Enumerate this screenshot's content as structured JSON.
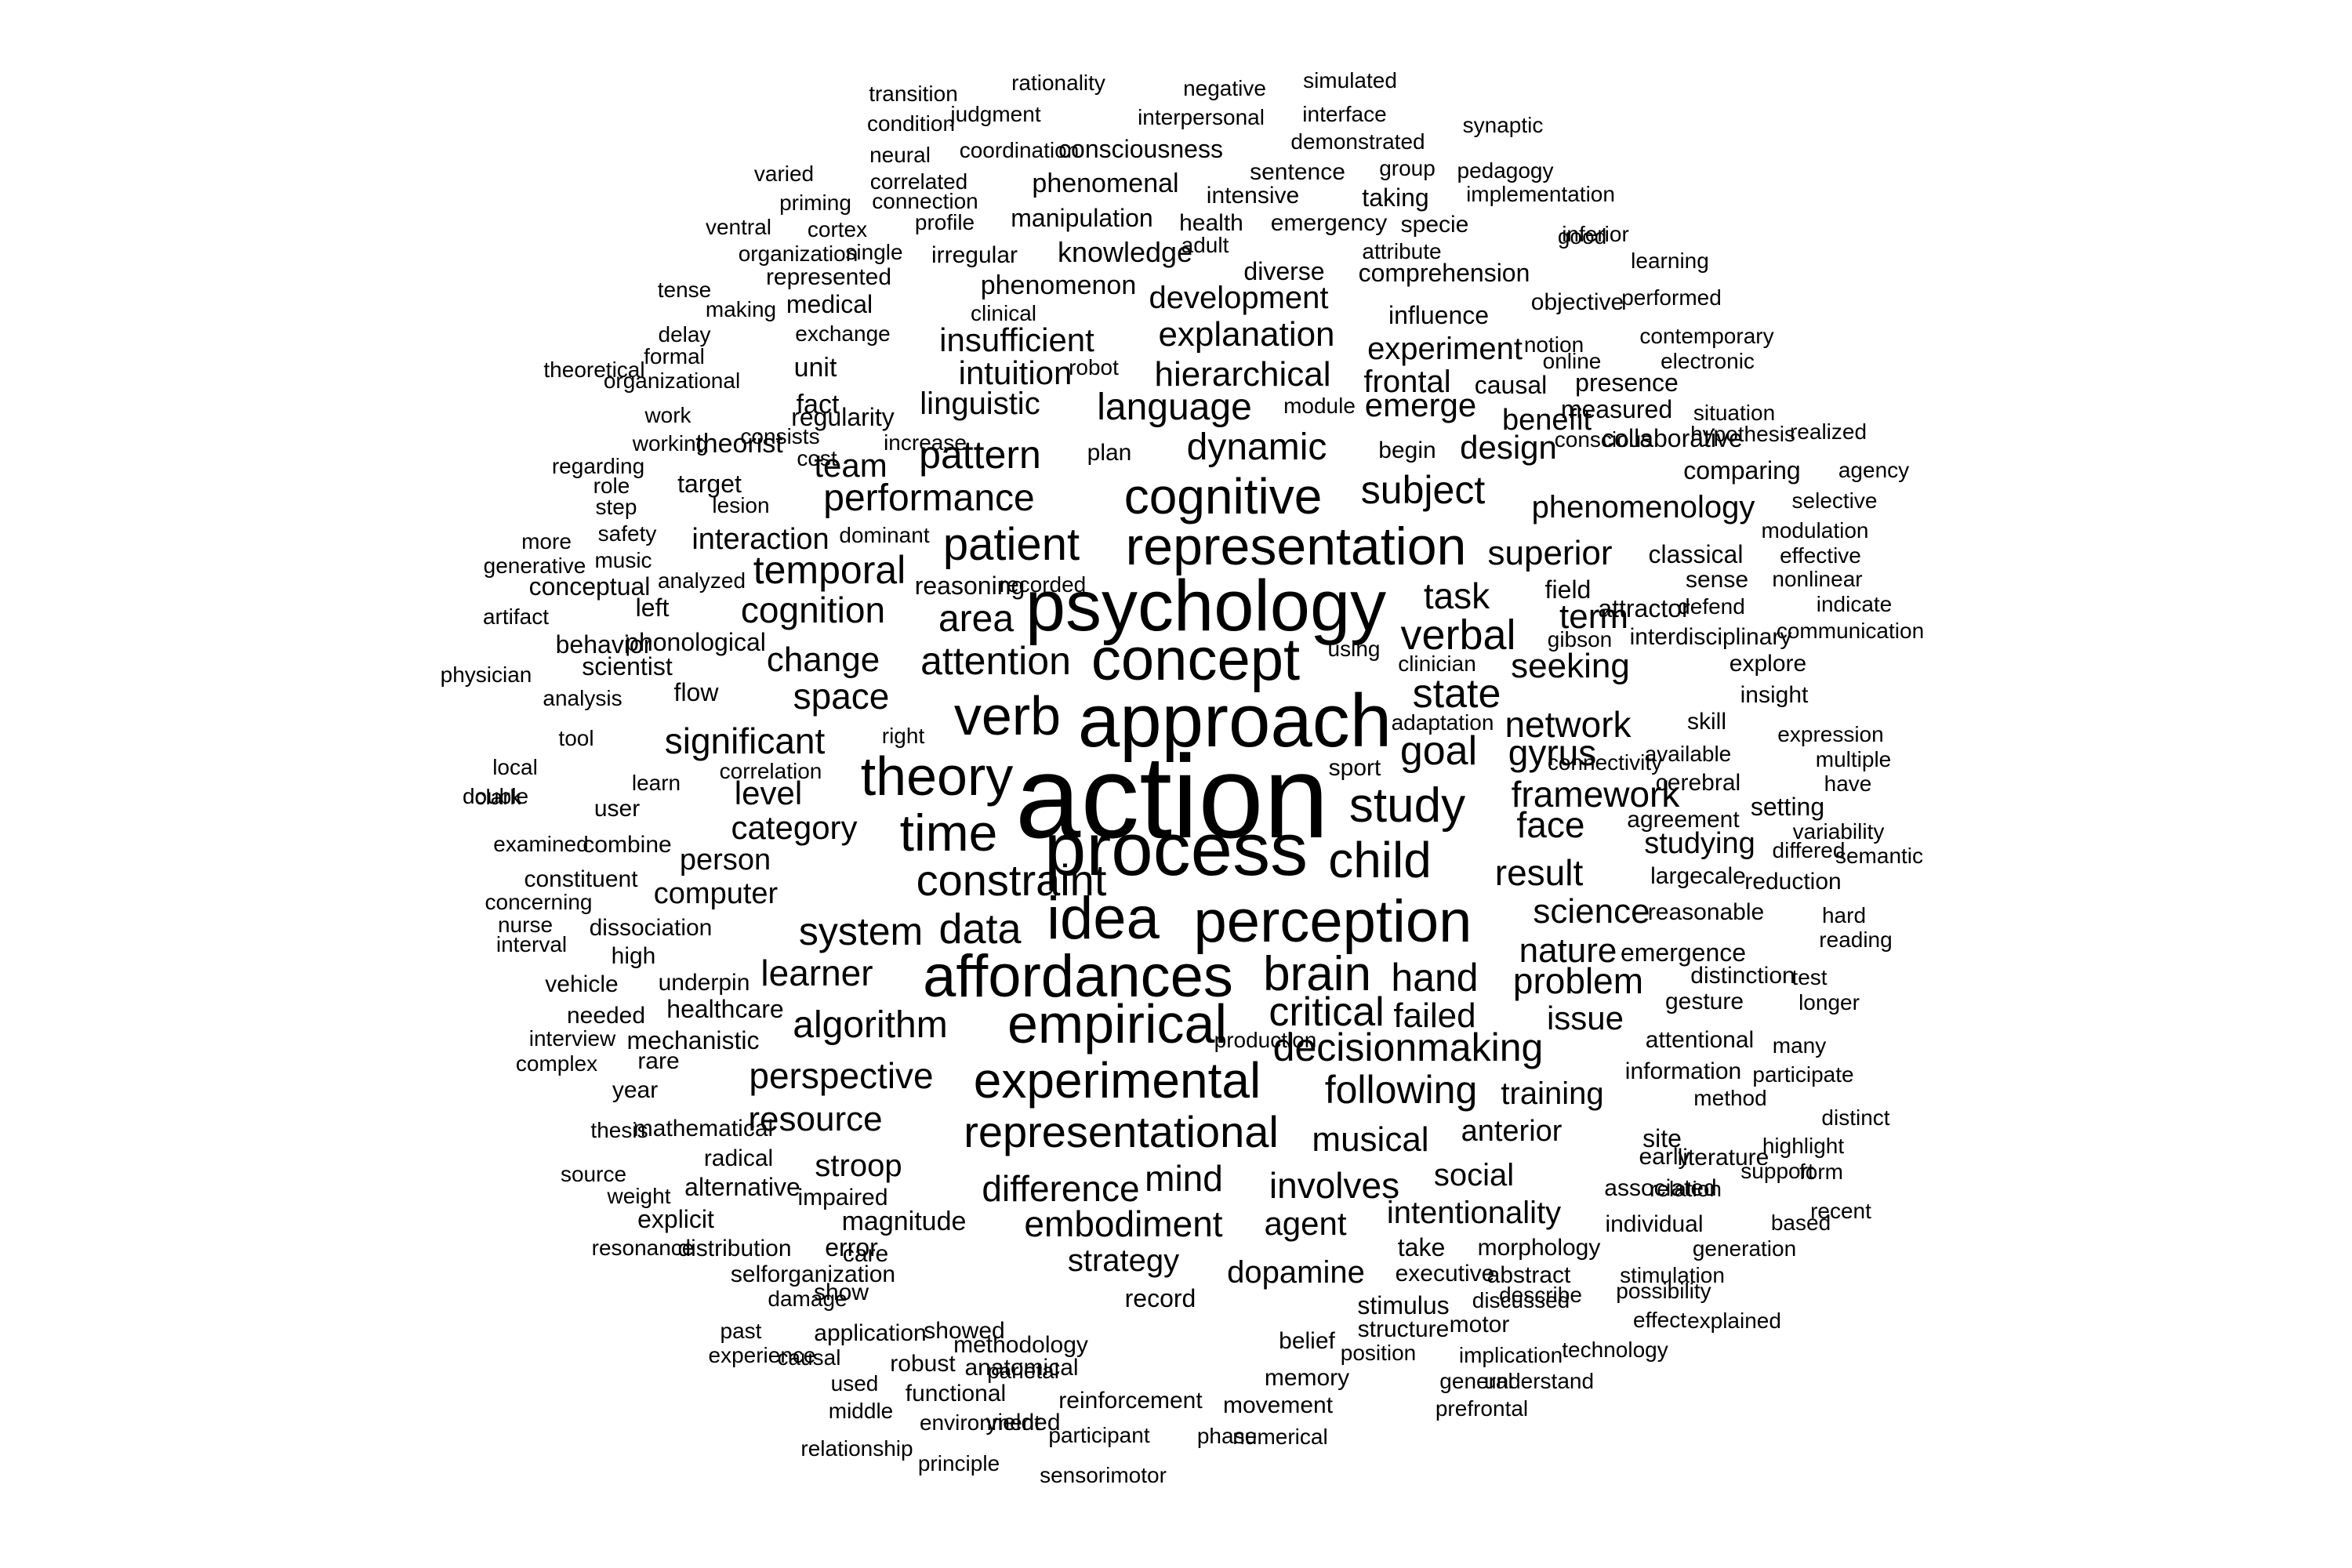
{
  "cloud": {
    "text_color": "#000000",
    "background": "#ffffff",
    "words": [
      {
        "text": "action"
      },
      {
        "text": "approach"
      },
      {
        "text": "process"
      },
      {
        "text": "psychology"
      },
      {
        "text": "concept"
      },
      {
        "text": "idea"
      },
      {
        "text": "perception"
      },
      {
        "text": "affordances"
      },
      {
        "text": "representation"
      },
      {
        "text": "verb"
      },
      {
        "text": "theory"
      },
      {
        "text": "time"
      },
      {
        "text": "empirical"
      },
      {
        "text": "experimental"
      },
      {
        "text": "cognitive"
      },
      {
        "text": "child"
      },
      {
        "text": "study"
      },
      {
        "text": "brain"
      },
      {
        "text": "representational"
      },
      {
        "text": "patient"
      },
      {
        "text": "constraint"
      },
      {
        "text": "verbal"
      },
      {
        "text": "attention"
      },
      {
        "text": "state"
      },
      {
        "text": "goal"
      },
      {
        "text": "critical"
      },
      {
        "text": "decisionmaking"
      },
      {
        "text": "data"
      },
      {
        "text": "system"
      },
      {
        "text": "hand"
      },
      {
        "text": "following"
      },
      {
        "text": "embodiment"
      },
      {
        "text": "difference"
      },
      {
        "text": "involves"
      },
      {
        "text": "significant"
      },
      {
        "text": "space"
      },
      {
        "text": "change"
      },
      {
        "text": "area"
      },
      {
        "text": "task"
      },
      {
        "text": "performance"
      },
      {
        "text": "subject"
      },
      {
        "text": "dynamic"
      },
      {
        "text": "language"
      },
      {
        "text": "pattern"
      },
      {
        "text": "temporal"
      },
      {
        "text": "cognition"
      },
      {
        "text": "network"
      },
      {
        "text": "gyrus"
      },
      {
        "text": "framework"
      },
      {
        "text": "face"
      },
      {
        "text": "result"
      },
      {
        "text": "science"
      },
      {
        "text": "nature"
      },
      {
        "text": "problem"
      },
      {
        "text": "failed"
      },
      {
        "text": "issue"
      },
      {
        "text": "learner"
      },
      {
        "text": "algorithm"
      },
      {
        "text": "perspective"
      },
      {
        "text": "resource"
      },
      {
        "text": "mind"
      },
      {
        "text": "musical"
      },
      {
        "text": "agent"
      },
      {
        "text": "strategy"
      },
      {
        "text": "dopamine"
      },
      {
        "text": "intentionality"
      },
      {
        "text": "social"
      },
      {
        "text": "anterior"
      },
      {
        "text": "training"
      },
      {
        "text": "seeking"
      },
      {
        "text": "term"
      },
      {
        "text": "superior"
      },
      {
        "text": "phenomenology"
      },
      {
        "text": "design"
      },
      {
        "text": "emerge"
      },
      {
        "text": "frontal"
      },
      {
        "text": "experiment"
      },
      {
        "text": "hierarchical"
      },
      {
        "text": "explanation"
      },
      {
        "text": "development"
      },
      {
        "text": "insufficient"
      },
      {
        "text": "intuition"
      },
      {
        "text": "linguistic"
      },
      {
        "text": "team"
      },
      {
        "text": "interaction"
      },
      {
        "text": "category"
      },
      {
        "text": "level"
      },
      {
        "text": "person"
      },
      {
        "text": "computer"
      },
      {
        "text": "studying"
      },
      {
        "text": "stroop"
      },
      {
        "text": "knowledge"
      },
      {
        "text": "phenomenon"
      },
      {
        "text": "phenomenal"
      },
      {
        "text": "manipulation"
      },
      {
        "text": "consciousness"
      },
      {
        "text": "coordination"
      },
      {
        "text": "transition"
      },
      {
        "text": "rationality"
      },
      {
        "text": "negative"
      },
      {
        "text": "simulated"
      },
      {
        "text": "condition"
      },
      {
        "text": "judgment"
      },
      {
        "text": "interpersonal"
      },
      {
        "text": "interface"
      },
      {
        "text": "synaptic"
      },
      {
        "text": "neural"
      },
      {
        "text": "demonstrated"
      },
      {
        "text": "varied"
      },
      {
        "text": "correlated"
      },
      {
        "text": "sentence"
      },
      {
        "text": "group"
      },
      {
        "text": "pedagogy"
      },
      {
        "text": "priming"
      },
      {
        "text": "connection"
      },
      {
        "text": "intensive"
      },
      {
        "text": "taking"
      },
      {
        "text": "implementation"
      },
      {
        "text": "ventral"
      },
      {
        "text": "cortex"
      },
      {
        "text": "profile"
      },
      {
        "text": "health"
      },
      {
        "text": "emergency"
      },
      {
        "text": "specie"
      },
      {
        "text": "inferior"
      },
      {
        "text": "organization"
      },
      {
        "text": "single"
      },
      {
        "text": "irregular"
      },
      {
        "text": "adult"
      },
      {
        "text": "attribute"
      },
      {
        "text": "learning"
      },
      {
        "text": "represented"
      },
      {
        "text": "diverse"
      },
      {
        "text": "comprehension"
      },
      {
        "text": "good"
      },
      {
        "text": "tense"
      },
      {
        "text": "making"
      },
      {
        "text": "medical"
      },
      {
        "text": "clinical"
      },
      {
        "text": "influence"
      },
      {
        "text": "objective"
      },
      {
        "text": "performed"
      },
      {
        "text": "delay"
      },
      {
        "text": "exchange"
      },
      {
        "text": "contemporary"
      },
      {
        "text": "notion"
      },
      {
        "text": "online"
      },
      {
        "text": "formal"
      },
      {
        "text": "organizational"
      },
      {
        "text": "theoretical"
      },
      {
        "text": "unit"
      },
      {
        "text": "robot"
      },
      {
        "text": "electronic"
      },
      {
        "text": "causal"
      },
      {
        "text": "presence"
      },
      {
        "text": "fact"
      },
      {
        "text": "module"
      },
      {
        "text": "measured"
      },
      {
        "text": "situation"
      },
      {
        "text": "work"
      },
      {
        "text": "regularity"
      },
      {
        "text": "benefit"
      },
      {
        "text": "hypothesis"
      },
      {
        "text": "working"
      },
      {
        "text": "theorist"
      },
      {
        "text": "consists"
      },
      {
        "text": "cost"
      },
      {
        "text": "plan"
      },
      {
        "text": "begin"
      },
      {
        "text": "collaborative"
      },
      {
        "text": "realized"
      },
      {
        "text": "regarding"
      },
      {
        "text": "increase"
      },
      {
        "text": "conscious"
      },
      {
        "text": "comparing"
      },
      {
        "text": "agency"
      },
      {
        "text": "role"
      },
      {
        "text": "target"
      },
      {
        "text": "step"
      },
      {
        "text": "lesion"
      },
      {
        "text": "selective"
      },
      {
        "text": "safety"
      },
      {
        "text": "dominant"
      },
      {
        "text": "modulation"
      },
      {
        "text": "more"
      },
      {
        "text": "music"
      },
      {
        "text": "classical"
      },
      {
        "text": "effective"
      },
      {
        "text": "generative"
      },
      {
        "text": "reasoning"
      },
      {
        "text": "field"
      },
      {
        "text": "sense"
      },
      {
        "text": "nonlinear"
      },
      {
        "text": "conceptual"
      },
      {
        "text": "analyzed"
      },
      {
        "text": "indicate"
      },
      {
        "text": "recorded"
      },
      {
        "text": "artifact"
      },
      {
        "text": "left"
      },
      {
        "text": "attractor"
      },
      {
        "text": "defend"
      },
      {
        "text": "communication"
      },
      {
        "text": "behavior"
      },
      {
        "text": "phonological"
      },
      {
        "text": "using"
      },
      {
        "text": "gibson"
      },
      {
        "text": "interdisciplinary"
      },
      {
        "text": "scientist"
      },
      {
        "text": "clinician"
      },
      {
        "text": "explore"
      },
      {
        "text": "physician"
      },
      {
        "text": "flow"
      },
      {
        "text": "insight"
      },
      {
        "text": "analysis"
      },
      {
        "text": "adaptation"
      },
      {
        "text": "skill"
      },
      {
        "text": "tool"
      },
      {
        "text": "right"
      },
      {
        "text": "expression"
      },
      {
        "text": "available"
      },
      {
        "text": "local"
      },
      {
        "text": "correlation"
      },
      {
        "text": "sport"
      },
      {
        "text": "connectivity"
      },
      {
        "text": "multiple"
      },
      {
        "text": "double"
      },
      {
        "text": "learn"
      },
      {
        "text": "cerebral"
      },
      {
        "text": "have"
      },
      {
        "text": "clark"
      },
      {
        "text": "user"
      },
      {
        "text": "setting"
      },
      {
        "text": "agreement"
      },
      {
        "text": "variability"
      },
      {
        "text": "examined"
      },
      {
        "text": "combine"
      },
      {
        "text": "differed"
      },
      {
        "text": "semantic"
      },
      {
        "text": "constituent"
      },
      {
        "text": "largecale"
      },
      {
        "text": "reduction"
      },
      {
        "text": "concerning"
      },
      {
        "text": "dissociation"
      },
      {
        "text": "reasonable"
      },
      {
        "text": "hard"
      },
      {
        "text": "nurse"
      },
      {
        "text": "interval"
      },
      {
        "text": "reading"
      },
      {
        "text": "high"
      },
      {
        "text": "emergence"
      },
      {
        "text": "vehicle"
      },
      {
        "text": "underpin"
      },
      {
        "text": "distinction"
      },
      {
        "text": "test"
      },
      {
        "text": "healthcare"
      },
      {
        "text": "gesture"
      },
      {
        "text": "longer"
      },
      {
        "text": "needed"
      },
      {
        "text": "interview"
      },
      {
        "text": "mechanistic"
      },
      {
        "text": "production"
      },
      {
        "text": "attentional"
      },
      {
        "text": "many"
      },
      {
        "text": "complex"
      },
      {
        "text": "rare"
      },
      {
        "text": "information"
      },
      {
        "text": "participate"
      },
      {
        "text": "year"
      },
      {
        "text": "method"
      },
      {
        "text": "distinct"
      },
      {
        "text": "thesis"
      },
      {
        "text": "mathematical"
      },
      {
        "text": "site"
      },
      {
        "text": "highlight"
      },
      {
        "text": "radical"
      },
      {
        "text": "early"
      },
      {
        "text": "literature"
      },
      {
        "text": "form"
      },
      {
        "text": "source"
      },
      {
        "text": "support"
      },
      {
        "text": "alternative"
      },
      {
        "text": "associated"
      },
      {
        "text": "relation"
      },
      {
        "text": "weight"
      },
      {
        "text": "impaired"
      },
      {
        "text": "recent"
      },
      {
        "text": "explicit"
      },
      {
        "text": "magnitude"
      },
      {
        "text": "individual"
      },
      {
        "text": "based"
      },
      {
        "text": "resonance"
      },
      {
        "text": "distribution"
      },
      {
        "text": "error"
      },
      {
        "text": "take"
      },
      {
        "text": "morphology"
      },
      {
        "text": "generation"
      },
      {
        "text": "care"
      },
      {
        "text": "selforganization"
      },
      {
        "text": "executive"
      },
      {
        "text": "abstract"
      },
      {
        "text": "stimulation"
      },
      {
        "text": "describe"
      },
      {
        "text": "show"
      },
      {
        "text": "discussed"
      },
      {
        "text": "possibility"
      },
      {
        "text": "damage"
      },
      {
        "text": "record"
      },
      {
        "text": "stimulus"
      },
      {
        "text": "motor"
      },
      {
        "text": "effect"
      },
      {
        "text": "explained"
      },
      {
        "text": "past"
      },
      {
        "text": "application"
      },
      {
        "text": "showed"
      },
      {
        "text": "structure"
      },
      {
        "text": "experience"
      },
      {
        "text": "causal"
      },
      {
        "text": "methodology"
      },
      {
        "text": "belief"
      },
      {
        "text": "position"
      },
      {
        "text": "implication"
      },
      {
        "text": "technology"
      },
      {
        "text": "robust"
      },
      {
        "text": "anatomical"
      },
      {
        "text": "parietal"
      },
      {
        "text": "memory"
      },
      {
        "text": "general"
      },
      {
        "text": "understand"
      },
      {
        "text": "used"
      },
      {
        "text": "functional"
      },
      {
        "text": "reinforcement"
      },
      {
        "text": "prefrontal"
      },
      {
        "text": "middle"
      },
      {
        "text": "environment"
      },
      {
        "text": "participant"
      },
      {
        "text": "yielded"
      },
      {
        "text": "phase"
      },
      {
        "text": "movement"
      },
      {
        "text": "numerical"
      },
      {
        "text": "relationship"
      },
      {
        "text": "principle"
      },
      {
        "text": "sensorimotor"
      }
    ]
  }
}
